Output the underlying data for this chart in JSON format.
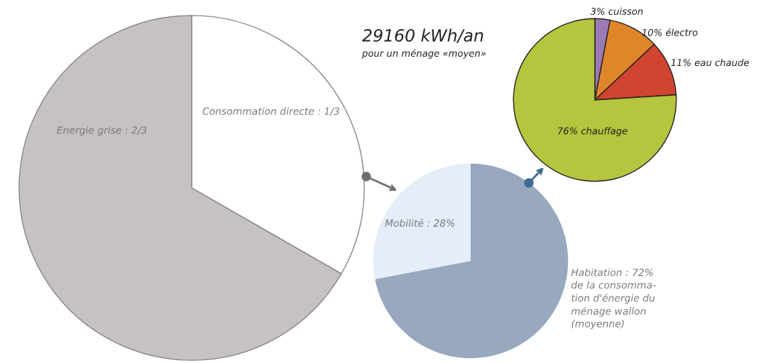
{
  "chart_data": [
    {
      "type": "pie",
      "categories": [
        "Consommation directe : 1/3",
        "Energie grise : 2/3"
      ],
      "values": [
        33.3,
        66.7
      ],
      "colors": [
        "#ffffff",
        "#c5c2c1"
      ]
    },
    {
      "type": "pie",
      "categories": [
        "Habitation : 72%\nde la consomma-\ntion d'énergie du\nménage wallon\n(moyenne)",
        "Mobilité : 28%"
      ],
      "values": [
        72,
        28
      ],
      "colors": [
        "#97a8bf",
        "#e4edf8"
      ]
    },
    {
      "type": "pie",
      "title": "29160 kWh/an",
      "subtitle": "pour un ménage «moyen»",
      "categories": [
        "3% cuisson",
        "10% électro",
        "11% eau chaude",
        "76% chauffage"
      ],
      "values": [
        3,
        10,
        11,
        76
      ],
      "colors": [
        "#9b7bb5",
        "#e0862a",
        "#d14430",
        "#b5c53d"
      ]
    }
  ]
}
